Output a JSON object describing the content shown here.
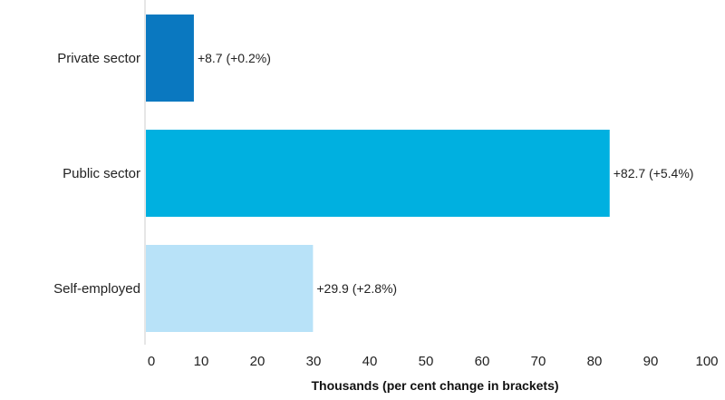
{
  "chart_data": {
    "type": "bar",
    "orientation": "horizontal",
    "categories": [
      "Private sector",
      "Public sector",
      "Self-employed"
    ],
    "values": [
      8.7,
      82.7,
      29.9
    ],
    "data_labels": [
      "+8.7 (+0.2%)",
      "+82.7 (+5.4%)",
      "+29.9 (+2.8%)"
    ],
    "colors": [
      "#0a78c0",
      "#00b0e0",
      "#b8e2f8"
    ],
    "xlabel": "Thousands (per cent change in brackets)",
    "xlim": [
      0,
      100
    ],
    "xticks": [
      0,
      10,
      20,
      30,
      40,
      50,
      60,
      70,
      80,
      90,
      100
    ],
    "grid": false,
    "legend": "none"
  }
}
